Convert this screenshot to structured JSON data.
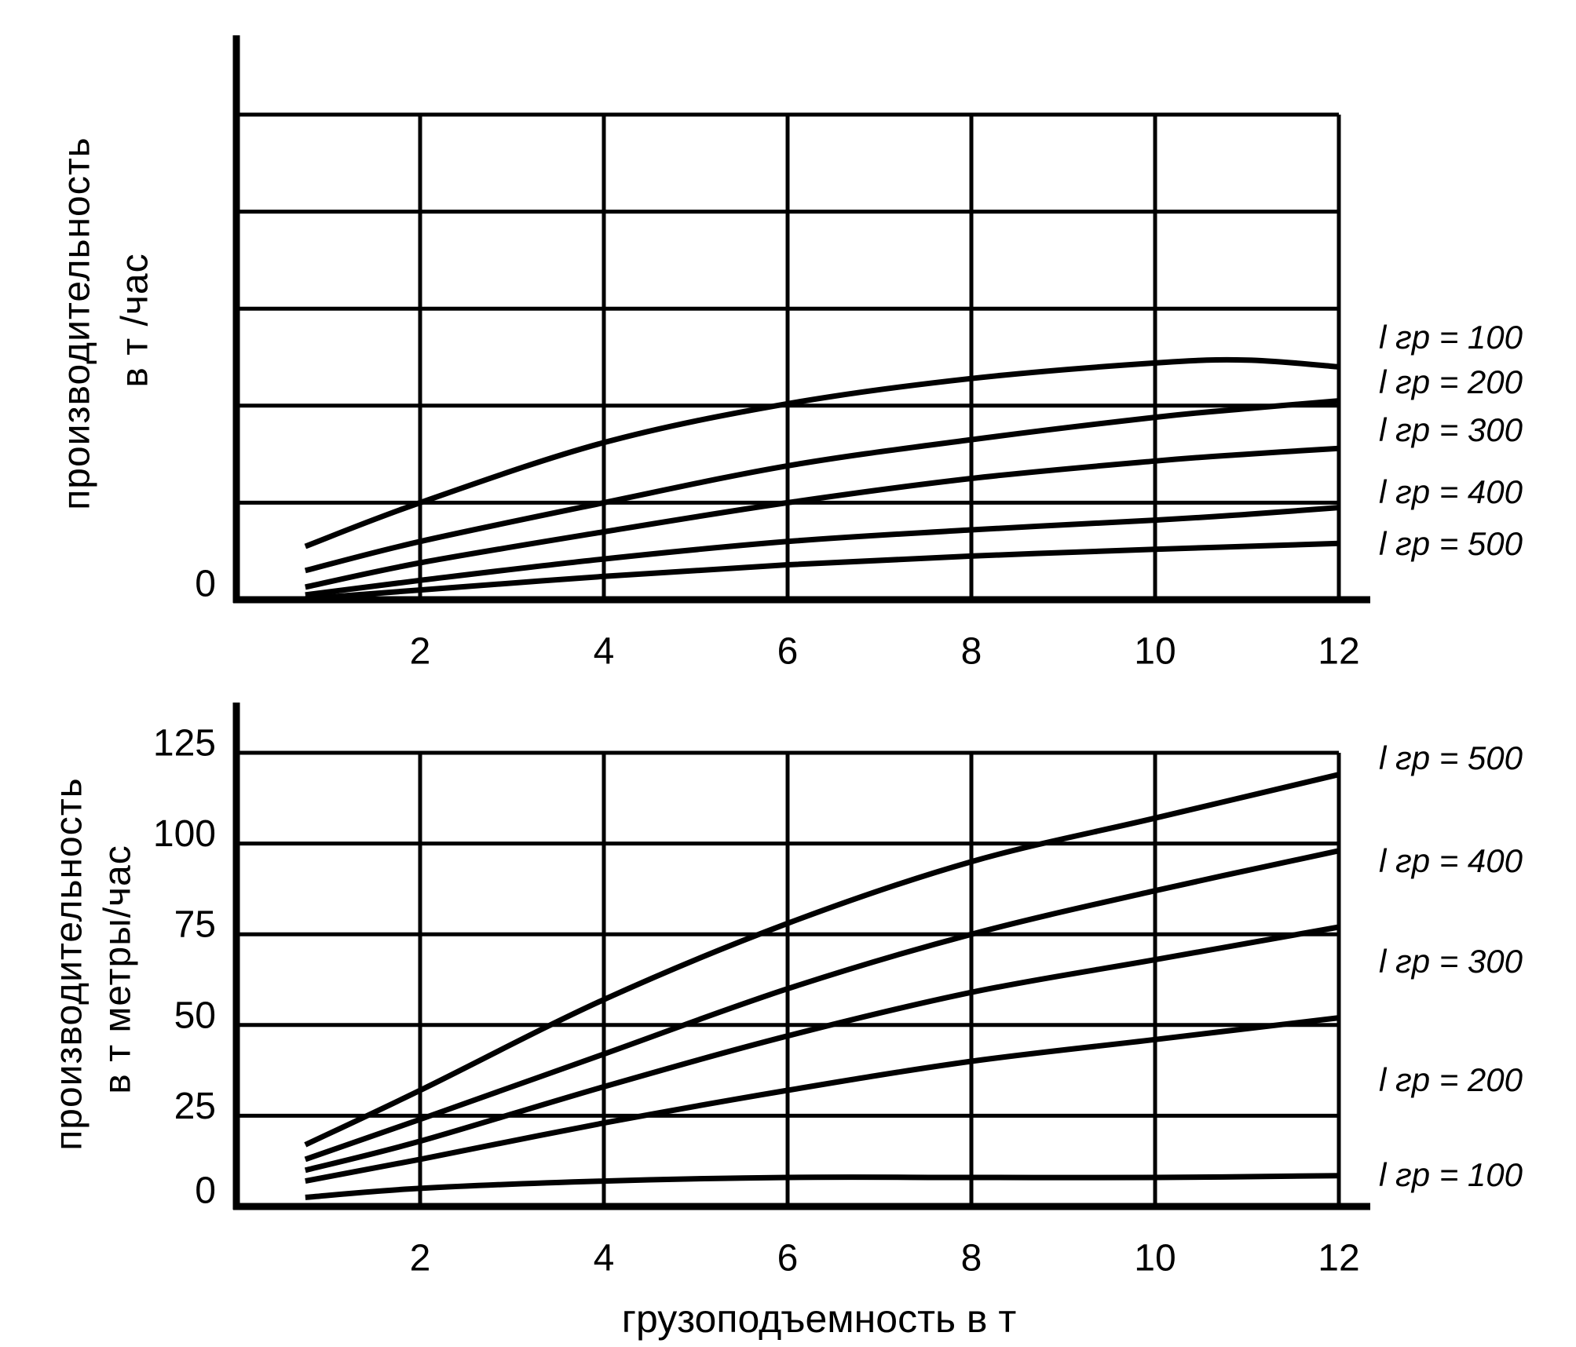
{
  "page": {
    "background": "#ffffff",
    "ink": "#000000"
  },
  "chart_data": [
    {
      "type": "line",
      "title": "",
      "ylabel": "производительность в т /час",
      "ylabel_lines": [
        "производительность",
        "в т /час"
      ],
      "xlabel": "грузоподъемность в т",
      "x_ticks": [
        2,
        4,
        6,
        8,
        10,
        12
      ],
      "y_ticks": [
        0
      ],
      "y_gridlines": [
        1,
        2,
        3,
        4,
        5
      ],
      "xlim": [
        0,
        12.3
      ],
      "ylim": [
        0,
        5.8
      ],
      "grid": true,
      "legend_position": "right",
      "x": [
        0.75,
        2,
        4,
        6,
        8,
        10,
        11,
        12
      ],
      "series": [
        {
          "name": "l гр = 100",
          "values": [
            0.55,
            1.0,
            1.62,
            2.02,
            2.28,
            2.44,
            2.47,
            2.4
          ]
        },
        {
          "name": "l гр = 200",
          "values": [
            0.3,
            0.6,
            1.0,
            1.38,
            1.65,
            1.88,
            1.97,
            2.05
          ]
        },
        {
          "name": "l гр = 300",
          "values": [
            0.13,
            0.38,
            0.7,
            1.0,
            1.25,
            1.43,
            1.5,
            1.56
          ]
        },
        {
          "name": "l гр = 400",
          "values": [
            0.05,
            0.2,
            0.42,
            0.6,
            0.72,
            0.82,
            0.88,
            0.95
          ]
        },
        {
          "name": "l гр = 500",
          "values": [
            0.01,
            0.1,
            0.24,
            0.36,
            0.45,
            0.52,
            0.55,
            0.58
          ]
        }
      ]
    },
    {
      "type": "line",
      "title": "",
      "ylabel": "производительность в т метры/час",
      "ylabel_lines": [
        "производительность",
        "в т метры/час"
      ],
      "xlabel": "грузоподъемность в т",
      "x_ticks": [
        2,
        4,
        6,
        8,
        10,
        12
      ],
      "y_ticks": [
        0,
        25,
        50,
        75,
        100,
        125
      ],
      "y_gridlines": [
        25,
        50,
        75,
        100,
        125
      ],
      "xlim": [
        0,
        12.3
      ],
      "ylim": [
        0,
        125
      ],
      "grid": true,
      "legend_position": "right",
      "x": [
        0.75,
        2,
        4,
        6,
        8,
        10,
        12
      ],
      "series": [
        {
          "name": "l гр = 500",
          "values": [
            17,
            32,
            57,
            78,
            95,
            107,
            119
          ]
        },
        {
          "name": "l гр = 400",
          "values": [
            13,
            24,
            42,
            60,
            75,
            87,
            98
          ]
        },
        {
          "name": "l гр = 300",
          "values": [
            10,
            18,
            33,
            47,
            59,
            68,
            77
          ]
        },
        {
          "name": "l гр = 200",
          "values": [
            7,
            13,
            23,
            32,
            40,
            46,
            52
          ]
        },
        {
          "name": "l гр = 100",
          "values": [
            2.5,
            5,
            7,
            8,
            8,
            8,
            8.5
          ]
        }
      ]
    }
  ]
}
